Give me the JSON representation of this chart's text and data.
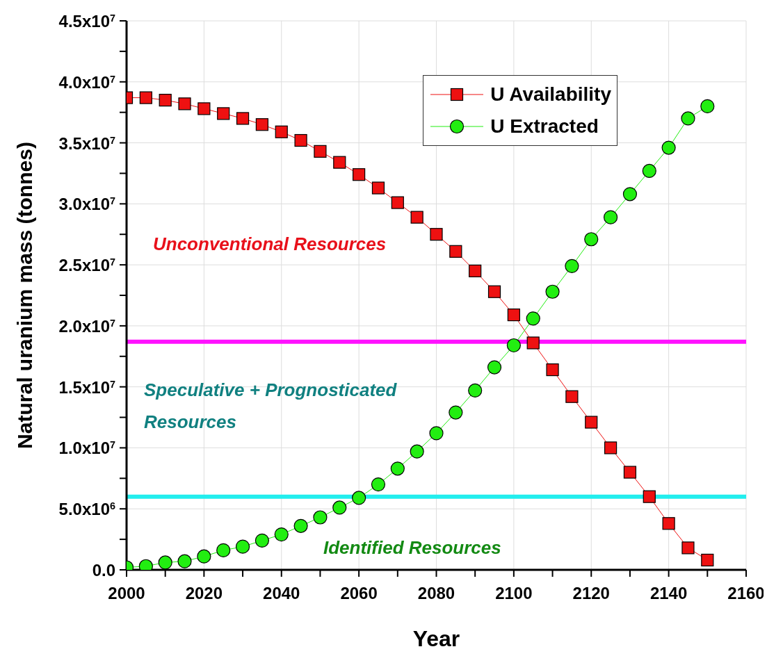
{
  "chart_data": {
    "type": "line",
    "xlabel": "Year",
    "ylabel": "Natural uranium mass (tonnes)",
    "x": [
      2000,
      2005,
      2010,
      2015,
      2020,
      2025,
      2030,
      2035,
      2040,
      2045,
      2050,
      2055,
      2060,
      2065,
      2070,
      2075,
      2080,
      2085,
      2090,
      2095,
      2100,
      2105,
      2110,
      2115,
      2120,
      2125,
      2130,
      2135,
      2140,
      2145,
      2150
    ],
    "series": [
      {
        "name": "U Availability",
        "color": "#ee1111",
        "marker": "square",
        "values": [
          38700000,
          38700000,
          38500000,
          38200000,
          37800000,
          37400000,
          37000000,
          36500000,
          35900000,
          35200000,
          34300000,
          33400000,
          32400000,
          31300000,
          30100000,
          28900000,
          27500000,
          26100000,
          24500000,
          22800000,
          20900000,
          18600000,
          16400000,
          14200000,
          12100000,
          10000000,
          8000000,
          6000000,
          3800000,
          1800000,
          800000
        ]
      },
      {
        "name": "U Extracted",
        "color": "#22ee11",
        "marker": "circle",
        "values": [
          200000,
          300000,
          600000,
          700000,
          1100000,
          1600000,
          1900000,
          2400000,
          2900000,
          3600000,
          4300000,
          5100000,
          5900000,
          7000000,
          8300000,
          9700000,
          11200000,
          12900000,
          14700000,
          16600000,
          18400000,
          20600000,
          22800000,
          24900000,
          27100000,
          28900000,
          30800000,
          32700000,
          34600000,
          37000000,
          38000000
        ]
      }
    ],
    "xlim": [
      2000,
      2160
    ],
    "xticks": [
      2000,
      {
        "value": 2010,
        "label": null
      },
      2020,
      {
        "value": 2030,
        "label": null
      },
      2040,
      {
        "value": 2050,
        "label": null
      },
      2060,
      {
        "value": 2070,
        "label": null
      },
      2080,
      {
        "value": 2090,
        "label": null
      },
      2100,
      {
        "value": 2110,
        "label": null
      },
      2120,
      {
        "value": 2130,
        "label": null
      },
      2140,
      {
        "value": 2150,
        "label": null
      },
      2160
    ],
    "ylim": [
      0,
      45000000
    ],
    "yticks": [
      {
        "value": 0,
        "label": "0.0"
      },
      {
        "value": 2500000,
        "label": null
      },
      {
        "value": 5000000,
        "label": "5.0x10$^{6}$"
      },
      {
        "value": 7500000,
        "label": null
      },
      {
        "value": 10000000,
        "label": "1.0x10$^{7}$"
      },
      {
        "value": 12500000,
        "label": null
      },
      {
        "value": 15000000,
        "label": "1.5x10$^{7}$"
      },
      {
        "value": 17500000,
        "label": null
      },
      {
        "value": 20000000,
        "label": "2.0x10$^{7}$"
      },
      {
        "value": 22500000,
        "label": null
      },
      {
        "value": 25000000,
        "label": "2.5x10$^{7}$"
      },
      {
        "value": 27500000,
        "label": null
      },
      {
        "value": 30000000,
        "label": "3.0x10$^{7}$"
      },
      {
        "value": 32500000,
        "label": null
      },
      {
        "value": 35000000,
        "label": "3.5x10$^{7}$"
      },
      {
        "value": 37500000,
        "label": null
      },
      {
        "value": 40000000,
        "label": "4.0x10$^{7}$"
      },
      {
        "value": 42500000,
        "label": null
      },
      {
        "value": 45000000,
        "label": "4.5x10$^{7}$"
      }
    ],
    "ref_lines": [
      {
        "axis": "y",
        "value": 18700000,
        "color": "#ff11ff"
      },
      {
        "axis": "y",
        "value": 6000000,
        "color": "#22eeee"
      }
    ],
    "annotations": [
      "Unconventional Resources",
      "Speculative + Prognosticated Resources",
      "Identified Resources"
    ],
    "grid": true,
    "legend": "top right"
  }
}
